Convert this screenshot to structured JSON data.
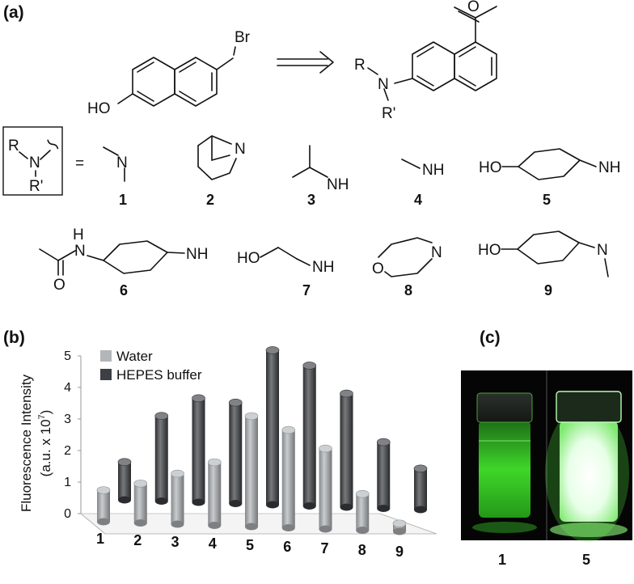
{
  "panels": {
    "a": "(a)",
    "b": "(b)",
    "c": "(c)"
  },
  "scheme": {
    "bromide_label": "Br",
    "hydroxy_label": "HO",
    "product_n": "N",
    "product_r": "R",
    "product_r_prime": "R'",
    "box_r": "R",
    "box_n": "N",
    "box_r_prime": "R'",
    "equals": "="
  },
  "amines": {
    "n_label": "N",
    "nh_label": "NH",
    "h_label": "H",
    "o_label": "O",
    "ho_label": "HO",
    "numbers": [
      "1",
      "2",
      "3",
      "4",
      "5",
      "6",
      "7",
      "8",
      "9"
    ]
  },
  "chart_data": {
    "type": "bar",
    "title": "",
    "ylabel_line1": "Fluorescence  Intensity",
    "ylabel_line2": "(a.u. x 10",
    "ylabel_exp": "7",
    "ylabel_close": ")",
    "ylim": [
      0,
      5
    ],
    "yticks": [
      "0",
      "1",
      "2",
      "3",
      "4",
      "5"
    ],
    "categories": [
      "1",
      "2",
      "3",
      "4",
      "5",
      "6",
      "7",
      "8",
      "9"
    ],
    "legend_position": "top-left",
    "series": [
      {
        "name": "Water",
        "color": "#b2b6b9",
        "values": [
          1.0,
          1.25,
          1.6,
          2.0,
          3.5,
          3.1,
          2.55,
          1.15,
          0.25
        ]
      },
      {
        "name": "HEPES buffer",
        "color": "#3c3f43",
        "values": [
          1.2,
          2.7,
          3.3,
          3.2,
          4.9,
          4.45,
          3.6,
          2.1,
          1.3
        ]
      }
    ]
  },
  "photo": {
    "vial_labels": [
      "1",
      "5"
    ],
    "glow_color_1": "#3fd62a",
    "glow_color_5": "#e8ffe8"
  }
}
